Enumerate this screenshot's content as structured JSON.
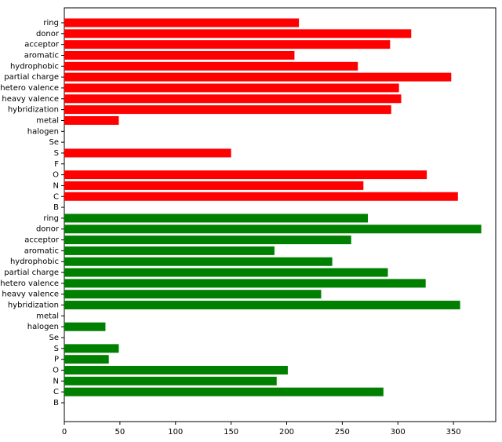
{
  "chart_data": {
    "type": "barh",
    "categories": [
      "ring",
      "donor",
      "acceptor",
      "aromatic",
      "hydrophobic",
      "partial charge",
      "hetero valence",
      "heavy valence",
      "hybridization",
      "metal",
      "halogen",
      "Se",
      "S",
      "F",
      "O",
      "N",
      "C",
      "B",
      "ring",
      "donor",
      "acceptor",
      "aromatic",
      "hydrophobic",
      "partial charge",
      "hetero valence",
      "heavy valence",
      "hybridization",
      "metal",
      "halogen",
      "Se",
      "S",
      "P",
      "O",
      "N",
      "C",
      "B"
    ],
    "values": [
      211,
      312,
      293,
      207,
      264,
      348,
      301,
      303,
      294,
      49,
      0,
      0,
      150,
      0,
      326,
      269,
      354,
      0,
      273,
      375,
      258,
      189,
      241,
      291,
      325,
      231,
      356,
      0,
      37,
      0,
      49,
      40,
      201,
      191,
      287,
      0
    ],
    "colors": [
      "#ff0000",
      "#ff0000",
      "#ff0000",
      "#ff0000",
      "#ff0000",
      "#ff0000",
      "#ff0000",
      "#ff0000",
      "#ff0000",
      "#ff0000",
      "#ff0000",
      "#ff0000",
      "#ff0000",
      "#ff0000",
      "#ff0000",
      "#ff0000",
      "#ff0000",
      "#ff0000",
      "#008000",
      "#008000",
      "#008000",
      "#008000",
      "#008000",
      "#008000",
      "#008000",
      "#008000",
      "#008000",
      "#008000",
      "#008000",
      "#008000",
      "#008000",
      "#008000",
      "#008000",
      "#008000",
      "#008000",
      "#008000"
    ],
    "xlim": [
      0,
      388
    ],
    "xticks": [
      0,
      50,
      100,
      150,
      200,
      250,
      300,
      350
    ]
  }
}
